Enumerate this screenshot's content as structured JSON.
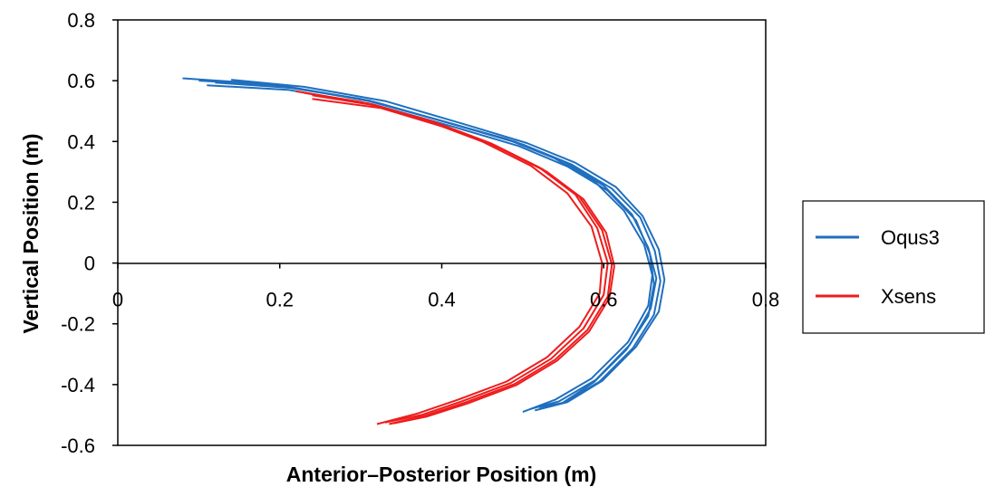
{
  "chart_data": {
    "type": "line",
    "title": "",
    "xlabel": "Anterior–Posterior Position (m)",
    "ylabel": "Vertical Position (m)",
    "xlim": [
      0,
      0.8
    ],
    "ylim": [
      -0.6,
      0.8
    ],
    "x_ticks": [
      0,
      0.2,
      0.4,
      0.6,
      0.8
    ],
    "x_tick_labels": [
      "0",
      "0.2",
      "0.4",
      "0.6",
      "0.8"
    ],
    "y_ticks": [
      0.8,
      0.6,
      0.4,
      0.2,
      0,
      -0.2,
      -0.4,
      -0.6
    ],
    "y_tick_labels": [
      "0.8",
      "0.6",
      "0.4",
      "0.2",
      "0",
      "-0.2",
      "-0.4",
      "-0.6"
    ],
    "grid": false,
    "legend_position": "right",
    "series": [
      {
        "name": "Oqus3",
        "color": "#1f6fbf",
        "traces": [
          [
            [
              0.08,
              0.608
            ],
            [
              0.18,
              0.59
            ],
            [
              0.3,
              0.54
            ],
            [
              0.4,
              0.468
            ],
            [
              0.48,
              0.408
            ],
            [
              0.54,
              0.344
            ],
            [
              0.59,
              0.265
            ],
            [
              0.625,
              0.172
            ],
            [
              0.65,
              0.06
            ],
            [
              0.66,
              -0.04
            ],
            [
              0.655,
              -0.14
            ],
            [
              0.63,
              -0.26
            ],
            [
              0.585,
              -0.38
            ],
            [
              0.54,
              -0.45
            ],
            [
              0.5,
              -0.49
            ]
          ],
          [
            [
              0.1,
              0.6
            ],
            [
              0.2,
              0.585
            ],
            [
              0.31,
              0.535
            ],
            [
              0.41,
              0.46
            ],
            [
              0.49,
              0.4
            ],
            [
              0.55,
              0.335
            ],
            [
              0.6,
              0.255
            ],
            [
              0.635,
              0.16
            ],
            [
              0.655,
              0.05
            ],
            [
              0.665,
              -0.05
            ],
            [
              0.658,
              -0.15
            ],
            [
              0.632,
              -0.27
            ],
            [
              0.59,
              -0.385
            ],
            [
              0.545,
              -0.455
            ],
            [
              0.51,
              -0.48
            ]
          ],
          [
            [
              0.12,
              0.594
            ],
            [
              0.22,
              0.575
            ],
            [
              0.32,
              0.528
            ],
            [
              0.42,
              0.452
            ],
            [
              0.5,
              0.39
            ],
            [
              0.56,
              0.325
            ],
            [
              0.61,
              0.245
            ],
            [
              0.645,
              0.15
            ],
            [
              0.663,
              0.04
            ],
            [
              0.67,
              -0.06
            ],
            [
              0.662,
              -0.17
            ],
            [
              0.636,
              -0.28
            ],
            [
              0.595,
              -0.39
            ],
            [
              0.55,
              -0.46
            ],
            [
              0.52,
              -0.475
            ]
          ],
          [
            [
              0.11,
              0.585
            ],
            [
              0.21,
              0.57
            ],
            [
              0.315,
              0.522
            ],
            [
              0.415,
              0.448
            ],
            [
              0.495,
              0.385
            ],
            [
              0.555,
              0.318
            ],
            [
              0.605,
              0.238
            ],
            [
              0.64,
              0.14
            ],
            [
              0.657,
              0.03
            ],
            [
              0.662,
              -0.07
            ],
            [
              0.655,
              -0.175
            ],
            [
              0.628,
              -0.285
            ],
            [
              0.588,
              -0.392
            ],
            [
              0.548,
              -0.462
            ],
            [
              0.525,
              -0.47
            ]
          ],
          [
            [
              0.14,
              0.603
            ],
            [
              0.23,
              0.58
            ],
            [
              0.33,
              0.533
            ],
            [
              0.43,
              0.455
            ],
            [
              0.505,
              0.395
            ],
            [
              0.565,
              0.33
            ],
            [
              0.615,
              0.25
            ],
            [
              0.648,
              0.155
            ],
            [
              0.668,
              0.045
            ],
            [
              0.675,
              -0.055
            ],
            [
              0.668,
              -0.16
            ],
            [
              0.64,
              -0.275
            ],
            [
              0.598,
              -0.388
            ],
            [
              0.555,
              -0.458
            ],
            [
              0.515,
              -0.485
            ]
          ]
        ]
      },
      {
        "name": "Xsens",
        "color": "#ee1c1c",
        "traces": [
          [
            [
              0.22,
              0.565
            ],
            [
              0.3,
              0.53
            ],
            [
              0.38,
              0.47
            ],
            [
              0.45,
              0.4
            ],
            [
              0.51,
              0.32
            ],
            [
              0.555,
              0.23
            ],
            [
              0.585,
              0.12
            ],
            [
              0.598,
              0.0
            ],
            [
              0.595,
              -0.1
            ],
            [
              0.57,
              -0.21
            ],
            [
              0.53,
              -0.31
            ],
            [
              0.48,
              -0.39
            ],
            [
              0.42,
              -0.45
            ],
            [
              0.37,
              -0.495
            ],
            [
              0.32,
              -0.53
            ]
          ],
          [
            [
              0.23,
              0.56
            ],
            [
              0.31,
              0.525
            ],
            [
              0.39,
              0.465
            ],
            [
              0.46,
              0.395
            ],
            [
              0.52,
              0.315
            ],
            [
              0.565,
              0.225
            ],
            [
              0.592,
              0.115
            ],
            [
              0.605,
              0.0
            ],
            [
              0.6,
              -0.105
            ],
            [
              0.575,
              -0.215
            ],
            [
              0.535,
              -0.315
            ],
            [
              0.485,
              -0.395
            ],
            [
              0.425,
              -0.455
            ],
            [
              0.375,
              -0.5
            ],
            [
              0.33,
              -0.525
            ]
          ],
          [
            [
              0.24,
              0.552
            ],
            [
              0.32,
              0.518
            ],
            [
              0.395,
              0.458
            ],
            [
              0.465,
              0.388
            ],
            [
              0.525,
              0.308
            ],
            [
              0.57,
              0.218
            ],
            [
              0.598,
              0.108
            ],
            [
              0.61,
              -0.005
            ],
            [
              0.605,
              -0.11
            ],
            [
              0.58,
              -0.22
            ],
            [
              0.54,
              -0.318
            ],
            [
              0.49,
              -0.398
            ],
            [
              0.43,
              -0.458
            ],
            [
              0.38,
              -0.502
            ],
            [
              0.335,
              -0.53
            ]
          ],
          [
            [
              0.24,
              0.54
            ],
            [
              0.325,
              0.51
            ],
            [
              0.4,
              0.45
            ],
            [
              0.47,
              0.38
            ],
            [
              0.53,
              0.3
            ],
            [
              0.575,
              0.21
            ],
            [
              0.603,
              0.1
            ],
            [
              0.613,
              -0.01
            ],
            [
              0.607,
              -0.115
            ],
            [
              0.582,
              -0.225
            ],
            [
              0.542,
              -0.322
            ],
            [
              0.492,
              -0.402
            ],
            [
              0.432,
              -0.462
            ],
            [
              0.382,
              -0.505
            ],
            [
              0.34,
              -0.528
            ]
          ]
        ]
      }
    ]
  }
}
